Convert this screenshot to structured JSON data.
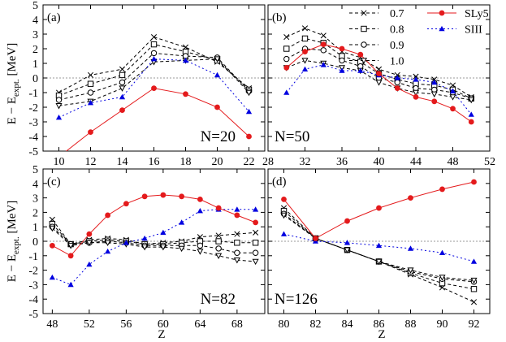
{
  "y_axis_label": "E − E",
  "y_axis_label_sub": "expt.",
  "y_axis_label_unit": " [MeV]",
  "x_axis_label": "Z",
  "legend": {
    "cols": [
      [
        {
          "label": "0.7",
          "series": "0.7"
        },
        {
          "label": "0.8",
          "series": "0.8"
        },
        {
          "label": "0.9",
          "series": "0.9"
        },
        {
          "label": "1.0",
          "series": "1.0"
        }
      ],
      [
        {
          "label": "SLy5",
          "series": "SLy5"
        },
        {
          "label": "SIII",
          "series": "SIII"
        }
      ]
    ]
  },
  "series_styles": {
    "0.7": {
      "color": "#000000",
      "marker": "cross",
      "dash": "4,3"
    },
    "0.8": {
      "color": "#000000",
      "marker": "square",
      "dash": "4,3"
    },
    "0.9": {
      "color": "#000000",
      "marker": "circle",
      "dash": "4,3"
    },
    "1.0": {
      "color": "#000000",
      "marker": "triangle-down",
      "dash": "4,3"
    },
    "SLy5": {
      "color": "#e41a1c",
      "marker": "filled-circle",
      "dash": ""
    },
    "SIII": {
      "color": "#0000e0",
      "marker": "filled-triangle",
      "dash": "2,3"
    }
  },
  "chart_data": [
    {
      "type": "line",
      "panel": "(a)",
      "label": "N=20",
      "xlim": [
        9,
        23
      ],
      "ylim": [
        -5,
        5
      ],
      "xticks": [
        10,
        12,
        14,
        16,
        18,
        20,
        22
      ],
      "yticks": [
        -5,
        -4,
        -3,
        -2,
        -1,
        0,
        1,
        2,
        3,
        4,
        5
      ],
      "x": [
        10,
        12,
        14,
        16,
        18,
        20,
        22
      ],
      "series": [
        {
          "name": "0.7",
          "values": [
            -1.0,
            0.2,
            0.6,
            2.8,
            2.1,
            1.1,
            -0.7
          ]
        },
        {
          "name": "0.8",
          "values": [
            -1.2,
            -0.4,
            0.2,
            2.3,
            1.8,
            1.2,
            -0.8
          ]
        },
        {
          "name": "0.9",
          "values": [
            -1.5,
            -1.0,
            -0.3,
            1.7,
            1.5,
            1.4,
            -0.9
          ]
        },
        {
          "name": "1.0",
          "values": [
            -1.9,
            -1.6,
            -0.7,
            1.1,
            1.2,
            1.3,
            -1.0
          ]
        },
        {
          "name": "SLy5",
          "values": [
            -5.4,
            -3.7,
            -2.2,
            -0.7,
            -1.1,
            -2.0,
            -4.0
          ]
        },
        {
          "name": "SIII",
          "values": [
            -2.7,
            -1.7,
            -1.3,
            1.3,
            1.2,
            0.2,
            -2.3
          ]
        }
      ]
    },
    {
      "type": "line",
      "panel": "(b)",
      "label": "N=50",
      "xlim": [
        28,
        52
      ],
      "ylim": [
        -5,
        5
      ],
      "xticks": [
        28,
        32,
        36,
        40,
        44,
        48,
        52
      ],
      "yticks": [
        -5,
        -4,
        -3,
        -2,
        -1,
        0,
        1,
        2,
        3,
        4,
        5
      ],
      "x": [
        30,
        32,
        34,
        36,
        38,
        40,
        42,
        44,
        46,
        48,
        50
      ],
      "series": [
        {
          "name": "0.7",
          "values": [
            2.8,
            3.4,
            2.9,
            1.8,
            1.4,
            0.6,
            0.2,
            0.1,
            -0.1,
            -0.5,
            -1.3
          ]
        },
        {
          "name": "0.8",
          "values": [
            2.0,
            2.7,
            2.4,
            1.5,
            1.1,
            0.3,
            -0.1,
            -0.4,
            -0.5,
            -0.8,
            -1.4
          ]
        },
        {
          "name": "0.9",
          "values": [
            1.3,
            2.0,
            1.9,
            1.2,
            0.8,
            0.0,
            -0.3,
            -0.7,
            -0.8,
            -1.0,
            -1.4
          ]
        },
        {
          "name": "1.0",
          "values": [
            0.7,
            1.2,
            1.0,
            0.7,
            0.5,
            -0.3,
            -0.7,
            -1.0,
            -1.1,
            -1.3,
            -1.5
          ]
        },
        {
          "name": "SLy5",
          "values": [
            0.7,
            1.8,
            2.3,
            2.0,
            1.6,
            0.3,
            -0.7,
            -1.3,
            -1.6,
            -2.1,
            -3.0
          ]
        },
        {
          "name": "SIII",
          "values": [
            -1.0,
            0.6,
            0.9,
            0.5,
            0.5,
            0.2,
            0.0,
            -0.1,
            -0.3,
            -0.9,
            -2.5
          ]
        }
      ]
    },
    {
      "type": "line",
      "panel": "(c)",
      "label": "N=82",
      "xlim": [
        47,
        71
      ],
      "ylim": [
        -5,
        5
      ],
      "xticks": [
        48,
        52,
        56,
        60,
        64,
        68
      ],
      "yticks": [
        -5,
        -4,
        -3,
        -2,
        -1,
        0,
        1,
        2,
        3,
        4,
        5
      ],
      "x": [
        48,
        50,
        52,
        54,
        56,
        58,
        60,
        62,
        64,
        66,
        68,
        70
      ],
      "series": [
        {
          "name": "0.7",
          "values": [
            1.5,
            -0.2,
            0.1,
            0.2,
            0.1,
            -0.2,
            -0.1,
            0.0,
            0.3,
            0.4,
            0.5,
            0.6
          ]
        },
        {
          "name": "0.8",
          "values": [
            1.2,
            -0.2,
            0.0,
            0.1,
            0.0,
            -0.2,
            -0.2,
            -0.1,
            0.0,
            0.0,
            -0.1,
            -0.1
          ]
        },
        {
          "name": "0.9",
          "values": [
            1.0,
            -0.2,
            -0.1,
            0.0,
            -0.1,
            -0.3,
            -0.3,
            -0.3,
            -0.3,
            -0.5,
            -0.8,
            -0.8
          ]
        },
        {
          "name": "1.0",
          "values": [
            0.9,
            -0.3,
            -0.1,
            -0.1,
            -0.2,
            -0.4,
            -0.4,
            -0.5,
            -0.7,
            -1.0,
            -1.3,
            -1.4
          ]
        },
        {
          "name": "SLy5",
          "values": [
            -0.3,
            -1.0,
            0.5,
            1.8,
            2.6,
            3.1,
            3.2,
            3.1,
            2.9,
            2.3,
            1.8,
            1.3
          ]
        },
        {
          "name": "SIII",
          "values": [
            -2.5,
            -3.0,
            -1.6,
            -0.7,
            -0.1,
            0.2,
            0.6,
            1.3,
            2.1,
            2.2,
            2.2,
            2.2
          ]
        }
      ]
    },
    {
      "type": "line",
      "panel": "(d)",
      "label": "N=126",
      "xlim": [
        79,
        93
      ],
      "ylim": [
        -5,
        5
      ],
      "xticks": [
        80,
        82,
        84,
        86,
        88,
        90,
        92
      ],
      "yticks": [
        -5,
        -4,
        -3,
        -2,
        -1,
        0,
        1,
        2,
        3,
        4,
        5
      ],
      "x": [
        80,
        82,
        84,
        86,
        88,
        90,
        92
      ],
      "series": [
        {
          "name": "0.7",
          "values": [
            2.3,
            0.2,
            -0.6,
            -1.4,
            -2.3,
            -3.2,
            -4.2
          ]
        },
        {
          "name": "0.8",
          "values": [
            2.1,
            0.2,
            -0.6,
            -1.4,
            -2.2,
            -2.9,
            -3.3
          ]
        },
        {
          "name": "0.9",
          "values": [
            1.9,
            0.2,
            -0.6,
            -1.4,
            -2.1,
            -2.6,
            -2.8
          ]
        },
        {
          "name": "1.0",
          "values": [
            1.8,
            0.2,
            -0.6,
            -1.4,
            -2.0,
            -2.5,
            -2.7
          ]
        },
        {
          "name": "SLy5",
          "values": [
            2.9,
            0.2,
            1.4,
            2.3,
            3.0,
            3.6,
            4.1
          ]
        },
        {
          "name": "SIII",
          "values": [
            0.5,
            0.0,
            -0.1,
            -0.3,
            -0.5,
            -0.8,
            -1.4
          ]
        }
      ]
    }
  ]
}
